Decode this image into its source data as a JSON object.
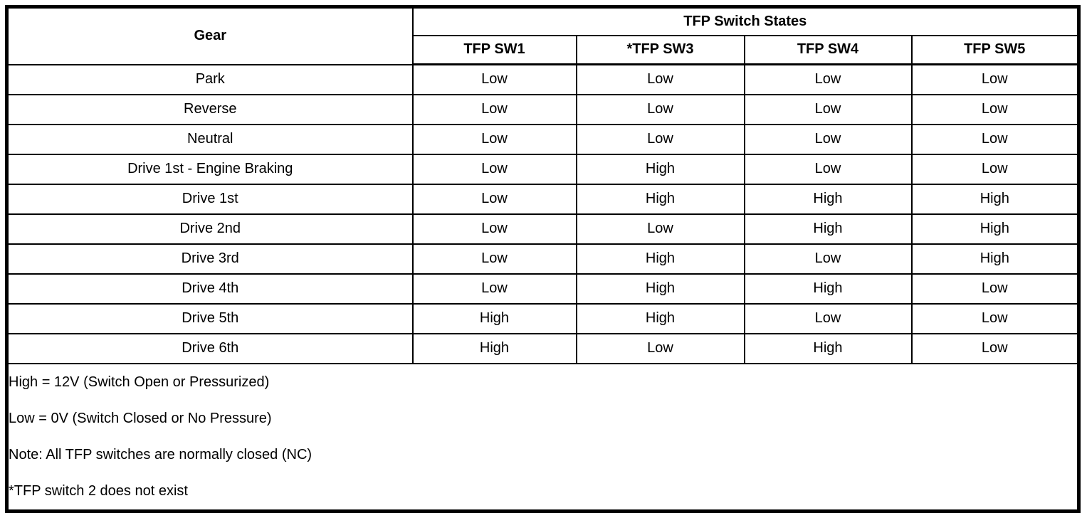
{
  "table": {
    "header": {
      "gear_label": "Gear",
      "group_label": "TFP Switch States",
      "switch_columns": [
        "TFP SW1",
        "*TFP SW3",
        "TFP SW4",
        "TFP SW5"
      ]
    },
    "rows": [
      {
        "gear": "Park",
        "states": [
          "Low",
          "Low",
          "Low",
          "Low"
        ]
      },
      {
        "gear": "Reverse",
        "states": [
          "Low",
          "Low",
          "Low",
          "Low"
        ]
      },
      {
        "gear": "Neutral",
        "states": [
          "Low",
          "Low",
          "Low",
          "Low"
        ]
      },
      {
        "gear": "Drive 1st - Engine Braking",
        "states": [
          "Low",
          "High",
          "Low",
          "Low"
        ]
      },
      {
        "gear": "Drive 1st",
        "states": [
          "Low",
          "High",
          "High",
          "High"
        ]
      },
      {
        "gear": "Drive 2nd",
        "states": [
          "Low",
          "Low",
          "High",
          "High"
        ]
      },
      {
        "gear": "Drive 3rd",
        "states": [
          "Low",
          "High",
          "Low",
          "High"
        ]
      },
      {
        "gear": "Drive 4th",
        "states": [
          "Low",
          "High",
          "High",
          "Low"
        ]
      },
      {
        "gear": "Drive 5th",
        "states": [
          "High",
          "High",
          "Low",
          "Low"
        ]
      },
      {
        "gear": "Drive 6th",
        "states": [
          "High",
          "Low",
          "High",
          "Low"
        ]
      }
    ],
    "notes": [
      "High = 12V (Switch Open or Pressurized)",
      "Low = 0V (Switch Closed or No Pressure)",
      "Note: All TFP switches are normally closed (NC)",
      "*TFP switch 2 does not exist"
    ]
  },
  "colors": {
    "background": "#ffffff",
    "text": "#000000",
    "border": "#000000"
  }
}
